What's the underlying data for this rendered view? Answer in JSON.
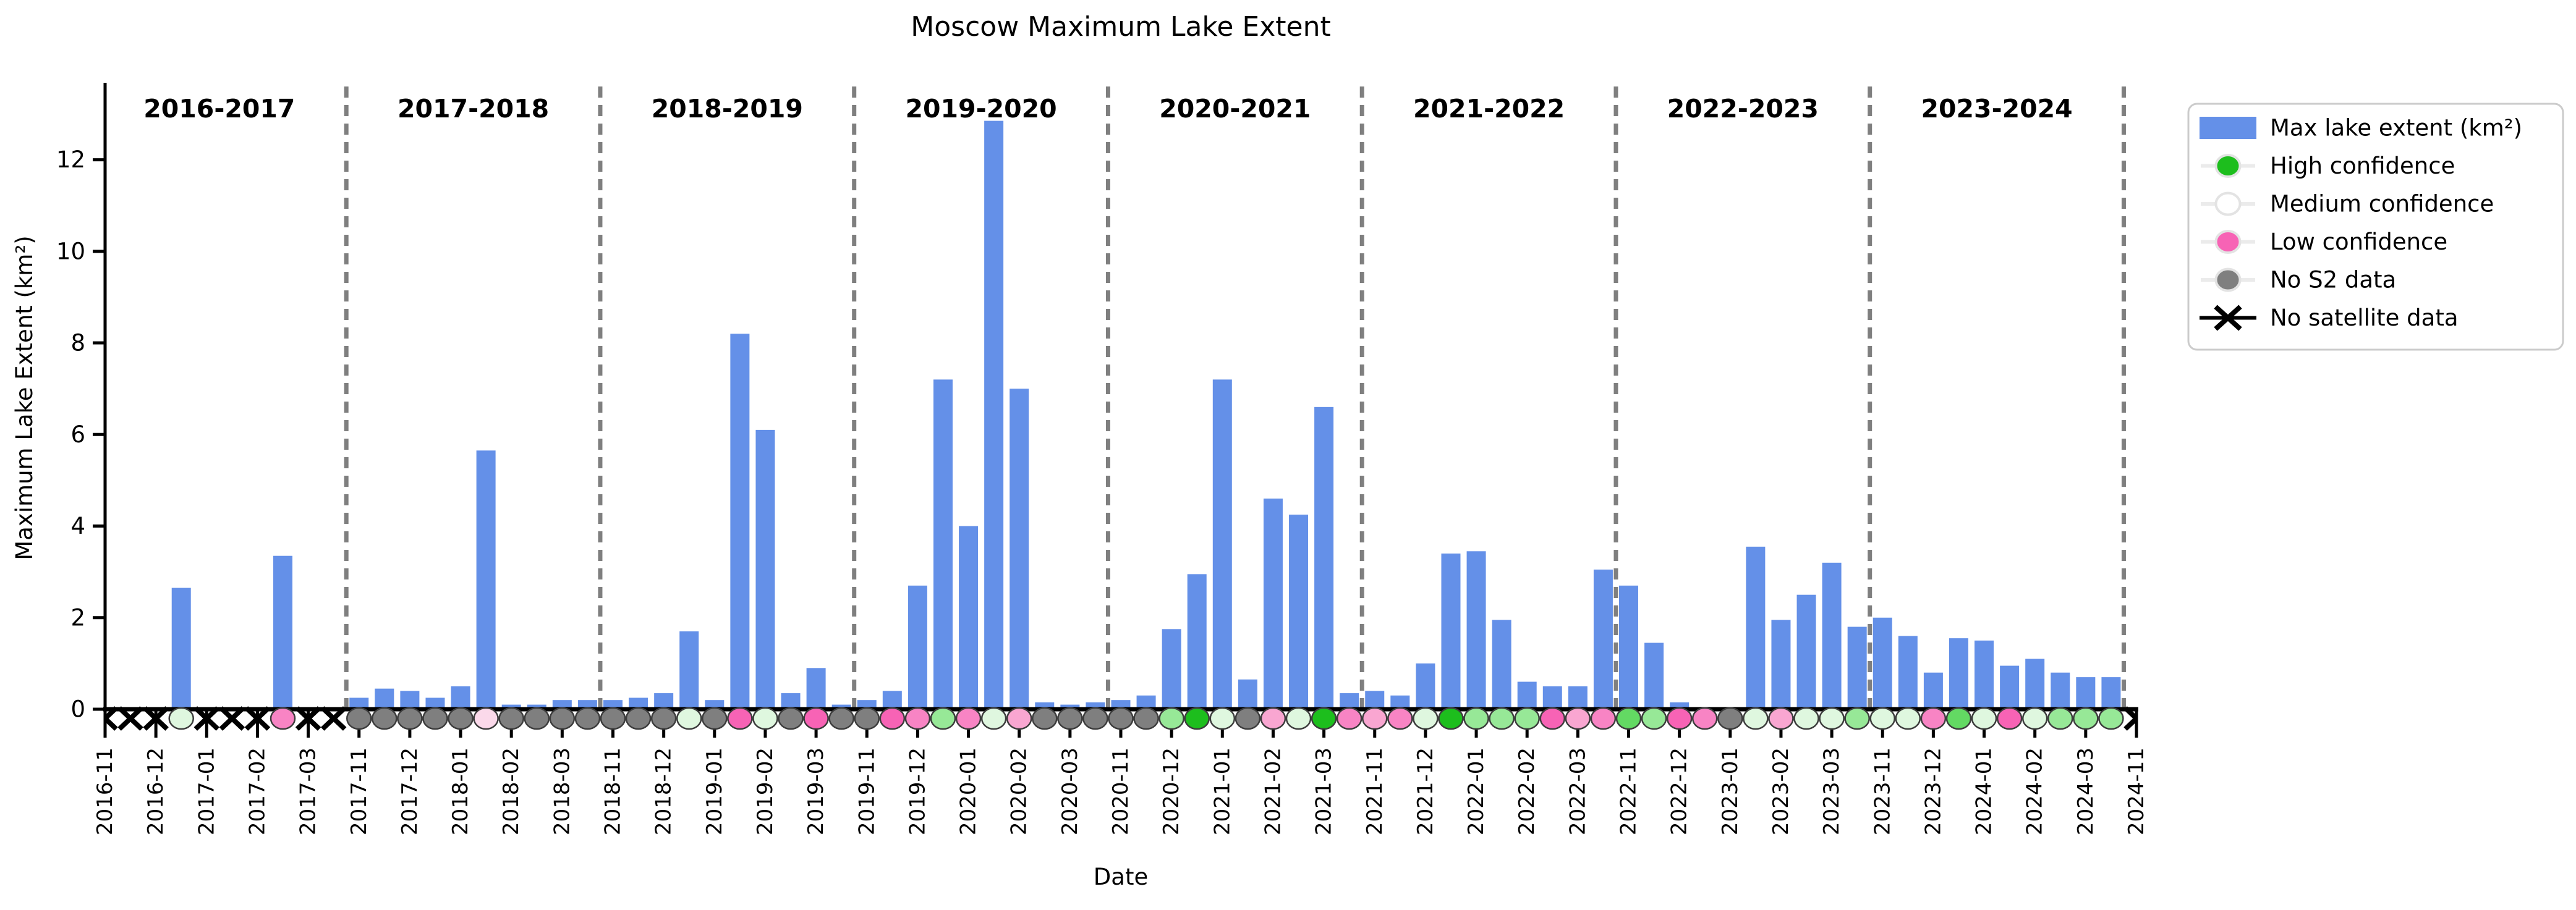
{
  "chart_data": {
    "type": "bar",
    "title": "Moscow Maximum Lake Extent",
    "xlabel": "Date",
    "ylabel": "Maximum Lake Extent (km²)",
    "ylim": [
      0,
      13.6
    ],
    "yticks": [
      0,
      2,
      4,
      6,
      8,
      10,
      12
    ],
    "grid": false,
    "bar_color": "#6490E8",
    "divider_color": "#7F7F7F",
    "marker_edge_color": "#3C3C3C",
    "confidence_colors": {
      "x": "#000000",
      "gray": "#7F7F7F",
      "white": "#FFFFFF",
      "green": "#1DBE1D",
      "medgreen": "#63D963",
      "lightgreen": "#97E897",
      "palegreen": "#DFF7DF",
      "deeppink": "#F763B5",
      "pink": "#F884C4",
      "lightpink": "#F9A6D1",
      "palepink": "#FBD9EA"
    },
    "x_tick_labels": [
      "2016-11",
      "2016-12",
      "2017-01",
      "2017-02",
      "2017-03",
      "2017-11",
      "2017-12",
      "2018-01",
      "2018-02",
      "2018-03",
      "2018-11",
      "2018-12",
      "2019-01",
      "2019-02",
      "2019-03",
      "2019-11",
      "2019-12",
      "2020-01",
      "2020-02",
      "2020-03",
      "2020-11",
      "2020-12",
      "2021-01",
      "2021-02",
      "2021-03",
      "2021-11",
      "2021-12",
      "2022-01",
      "2022-02",
      "2022-03",
      "2022-11",
      "2022-12",
      "2023-01",
      "2023-02",
      "2023-03",
      "2023-11",
      "2023-12",
      "2024-01",
      "2024-02",
      "2024-03",
      "2024-11"
    ],
    "seasons": [
      {
        "label": "2016-2017",
        "entries": [
          {
            "date": "2016-11",
            "half": 1,
            "value": 0,
            "conf": "x"
          },
          {
            "date": "2016-11",
            "half": 2,
            "value": 0,
            "conf": "x"
          },
          {
            "date": "2016-12",
            "half": 1,
            "value": 0,
            "conf": "x"
          },
          {
            "date": "2016-12",
            "half": 2,
            "value": 2.65,
            "conf": "palegreen"
          },
          {
            "date": "2017-01",
            "half": 1,
            "value": 0,
            "conf": "x"
          },
          {
            "date": "2017-01",
            "half": 2,
            "value": 0,
            "conf": "x"
          },
          {
            "date": "2017-02",
            "half": 1,
            "value": 0,
            "conf": "x"
          },
          {
            "date": "2017-02",
            "half": 2,
            "value": 3.35,
            "conf": "pink"
          },
          {
            "date": "2017-03",
            "half": 1,
            "value": 0,
            "conf": "x"
          },
          {
            "date": "2017-03",
            "half": 2,
            "value": 0,
            "conf": "x"
          }
        ]
      },
      {
        "label": "2017-2018",
        "entries": [
          {
            "date": "2017-11",
            "half": 1,
            "value": 0.25,
            "conf": "gray"
          },
          {
            "date": "2017-11",
            "half": 2,
            "value": 0.45,
            "conf": "gray"
          },
          {
            "date": "2017-12",
            "half": 1,
            "value": 0.4,
            "conf": "gray"
          },
          {
            "date": "2017-12",
            "half": 2,
            "value": 0.25,
            "conf": "gray"
          },
          {
            "date": "2018-01",
            "half": 1,
            "value": 0.5,
            "conf": "gray"
          },
          {
            "date": "2018-01",
            "half": 2,
            "value": 5.65,
            "conf": "palepink"
          },
          {
            "date": "2018-02",
            "half": 1,
            "value": 0.1,
            "conf": "gray"
          },
          {
            "date": "2018-02",
            "half": 2,
            "value": 0.1,
            "conf": "gray"
          },
          {
            "date": "2018-03",
            "half": 1,
            "value": 0.2,
            "conf": "gray"
          },
          {
            "date": "2018-03",
            "half": 2,
            "value": 0.2,
            "conf": "gray"
          }
        ]
      },
      {
        "label": "2018-2019",
        "entries": [
          {
            "date": "2018-11",
            "half": 1,
            "value": 0.2,
            "conf": "gray"
          },
          {
            "date": "2018-11",
            "half": 2,
            "value": 0.25,
            "conf": "gray"
          },
          {
            "date": "2018-12",
            "half": 1,
            "value": 0.35,
            "conf": "gray"
          },
          {
            "date": "2018-12",
            "half": 2,
            "value": 1.7,
            "conf": "palegreen"
          },
          {
            "date": "2019-01",
            "half": 1,
            "value": 0.2,
            "conf": "gray"
          },
          {
            "date": "2019-01",
            "half": 2,
            "value": 8.2,
            "conf": "deeppink"
          },
          {
            "date": "2019-02",
            "half": 1,
            "value": 6.1,
            "conf": "palegreen"
          },
          {
            "date": "2019-02",
            "half": 2,
            "value": 0.35,
            "conf": "gray"
          },
          {
            "date": "2019-03",
            "half": 1,
            "value": 0.9,
            "conf": "deeppink"
          },
          {
            "date": "2019-03",
            "half": 2,
            "value": 0.1,
            "conf": "gray"
          }
        ]
      },
      {
        "label": "2019-2020",
        "entries": [
          {
            "date": "2019-11",
            "half": 1,
            "value": 0.2,
            "conf": "gray"
          },
          {
            "date": "2019-11",
            "half": 2,
            "value": 0.4,
            "conf": "deeppink"
          },
          {
            "date": "2019-12",
            "half": 1,
            "value": 2.7,
            "conf": "pink"
          },
          {
            "date": "2019-12",
            "half": 2,
            "value": 7.2,
            "conf": "lightgreen"
          },
          {
            "date": "2020-01",
            "half": 1,
            "value": 4.0,
            "conf": "pink"
          },
          {
            "date": "2020-01",
            "half": 2,
            "value": 12.85,
            "conf": "palegreen"
          },
          {
            "date": "2020-02",
            "half": 1,
            "value": 7.0,
            "conf": "lightpink"
          },
          {
            "date": "2020-02",
            "half": 2,
            "value": 0.15,
            "conf": "gray"
          },
          {
            "date": "2020-03",
            "half": 1,
            "value": 0.1,
            "conf": "gray"
          },
          {
            "date": "2020-03",
            "half": 2,
            "value": 0.15,
            "conf": "gray"
          }
        ]
      },
      {
        "label": "2020-2021",
        "entries": [
          {
            "date": "2020-11",
            "half": 1,
            "value": 0.2,
            "conf": "gray"
          },
          {
            "date": "2020-11",
            "half": 2,
            "value": 0.3,
            "conf": "gray"
          },
          {
            "date": "2020-12",
            "half": 1,
            "value": 1.75,
            "conf": "lightgreen"
          },
          {
            "date": "2020-12",
            "half": 2,
            "value": 2.95,
            "conf": "green"
          },
          {
            "date": "2021-01",
            "half": 1,
            "value": 7.2,
            "conf": "palegreen"
          },
          {
            "date": "2021-01",
            "half": 2,
            "value": 0.65,
            "conf": "gray"
          },
          {
            "date": "2021-02",
            "half": 1,
            "value": 4.6,
            "conf": "lightpink"
          },
          {
            "date": "2021-02",
            "half": 2,
            "value": 4.25,
            "conf": "palegreen"
          },
          {
            "date": "2021-03",
            "half": 1,
            "value": 6.6,
            "conf": "green"
          },
          {
            "date": "2021-03",
            "half": 2,
            "value": 0.35,
            "conf": "pink"
          }
        ]
      },
      {
        "label": "2021-2022",
        "entries": [
          {
            "date": "2021-11",
            "half": 1,
            "value": 0.4,
            "conf": "lightpink"
          },
          {
            "date": "2021-11",
            "half": 2,
            "value": 0.3,
            "conf": "pink"
          },
          {
            "date": "2021-12",
            "half": 1,
            "value": 1.0,
            "conf": "palegreen"
          },
          {
            "date": "2021-12",
            "half": 2,
            "value": 3.4,
            "conf": "green"
          },
          {
            "date": "2022-01",
            "half": 1,
            "value": 3.45,
            "conf": "lightgreen"
          },
          {
            "date": "2022-01",
            "half": 2,
            "value": 1.95,
            "conf": "lightgreen"
          },
          {
            "date": "2022-02",
            "half": 1,
            "value": 0.6,
            "conf": "lightgreen"
          },
          {
            "date": "2022-02",
            "half": 2,
            "value": 0.5,
            "conf": "deeppink"
          },
          {
            "date": "2022-03",
            "half": 1,
            "value": 0.5,
            "conf": "lightpink"
          },
          {
            "date": "2022-03",
            "half": 2,
            "value": 3.05,
            "conf": "pink"
          }
        ]
      },
      {
        "label": "2022-2023",
        "entries": [
          {
            "date": "2022-11",
            "half": 1,
            "value": 2.7,
            "conf": "medgreen"
          },
          {
            "date": "2022-11",
            "half": 2,
            "value": 1.45,
            "conf": "lightgreen"
          },
          {
            "date": "2022-12",
            "half": 1,
            "value": 0.15,
            "conf": "deeppink"
          },
          {
            "date": "2022-12",
            "half": 2,
            "value": 0,
            "conf": "pink"
          },
          {
            "date": "2023-01",
            "half": 1,
            "value": 0,
            "conf": "gray"
          },
          {
            "date": "2023-01",
            "half": 2,
            "value": 3.55,
            "conf": "palegreen"
          },
          {
            "date": "2023-02",
            "half": 1,
            "value": 1.95,
            "conf": "lightpink"
          },
          {
            "date": "2023-02",
            "half": 2,
            "value": 2.5,
            "conf": "palegreen"
          },
          {
            "date": "2023-03",
            "half": 1,
            "value": 3.2,
            "conf": "palegreen"
          },
          {
            "date": "2023-03",
            "half": 2,
            "value": 1.8,
            "conf": "lightgreen"
          }
        ]
      },
      {
        "label": "2023-2024",
        "entries": [
          {
            "date": "2023-11",
            "half": 1,
            "value": 2.0,
            "conf": "palegreen"
          },
          {
            "date": "2023-11",
            "half": 2,
            "value": 1.6,
            "conf": "palegreen"
          },
          {
            "date": "2023-12",
            "half": 1,
            "value": 0.8,
            "conf": "pink"
          },
          {
            "date": "2023-12",
            "half": 2,
            "value": 1.55,
            "conf": "medgreen"
          },
          {
            "date": "2024-01",
            "half": 1,
            "value": 1.5,
            "conf": "palegreen"
          },
          {
            "date": "2024-01",
            "half": 2,
            "value": 0.95,
            "conf": "deeppink"
          },
          {
            "date": "2024-02",
            "half": 1,
            "value": 1.1,
            "conf": "palegreen"
          },
          {
            "date": "2024-02",
            "half": 2,
            "value": 0.8,
            "conf": "lightgreen"
          },
          {
            "date": "2024-03",
            "half": 1,
            "value": 0.7,
            "conf": "lightgreen"
          },
          {
            "date": "2024-03",
            "half": 2,
            "value": 0.7,
            "conf": "lightgreen"
          }
        ]
      }
    ],
    "end_marker": {
      "date": "2024-11",
      "half": 1,
      "value": 0,
      "conf": "x"
    },
    "legend_position": "upper right, outside axes"
  },
  "legend": {
    "items": [
      {
        "label": "Max lake extent (km²)",
        "type": "bar",
        "color": "#6490E8"
      },
      {
        "label": "High confidence",
        "type": "dot",
        "color": "#1DBE1D"
      },
      {
        "label": "Medium confidence",
        "type": "dot",
        "color": "#FFFFFF"
      },
      {
        "label": "Low confidence",
        "type": "dot",
        "color": "#F763B5"
      },
      {
        "label": "No S2 data",
        "type": "dot",
        "color": "#7F7F7F"
      },
      {
        "label": "No satellite data",
        "type": "x",
        "color": "#000000"
      }
    ]
  }
}
